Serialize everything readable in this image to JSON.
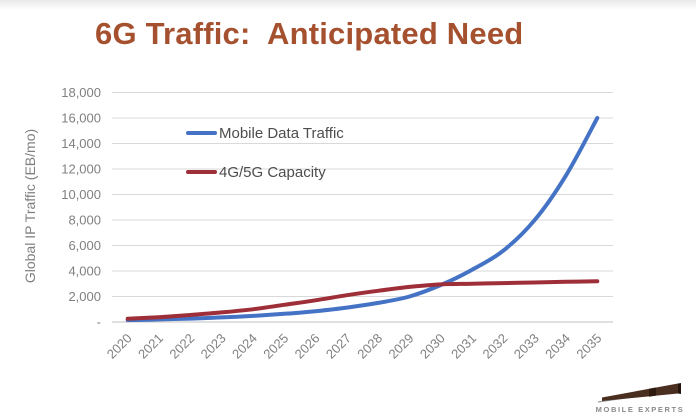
{
  "page": {
    "title": "6G Traffic:  Anticipated Need"
  },
  "colors": {
    "title": "#A5502E",
    "series_mobile": "#4472C4",
    "series_capacity": "#9E2F38",
    "gridline": "#D9D9D9",
    "axis_line": "#C0C0C0",
    "axis_text": "#808080",
    "legend_text": "#4d4d4d"
  },
  "chart_data": {
    "type": "line",
    "title": "6G Traffic:  Anticipated Need",
    "xlabel": "",
    "ylabel": "Global IP Traffic (EB/mo)",
    "categories": [
      "2020",
      "2021",
      "2022",
      "2023",
      "2024",
      "2025",
      "2026",
      "2027",
      "2028",
      "2029",
      "2030",
      "2031",
      "2032",
      "2033",
      "2034",
      "2035"
    ],
    "series": [
      {
        "name": "Mobile Data Traffic",
        "color": "#4472C4",
        "values": [
          150,
          200,
          270,
          360,
          480,
          640,
          850,
          1130,
          1500,
          2000,
          2900,
          4100,
          5600,
          8000,
          11500,
          16000
        ]
      },
      {
        "name": "4G/5G Capacity",
        "color": "#9E2F38",
        "values": [
          250,
          380,
          550,
          750,
          1000,
          1350,
          1700,
          2100,
          2450,
          2750,
          2950,
          3000,
          3050,
          3100,
          3150,
          3200
        ]
      }
    ],
    "ylim": [
      0,
      18000
    ],
    "ytick_step": 2000,
    "ytick_zero_label": "-",
    "grid": "horizontal",
    "legend_position": "inside-top-left",
    "x_tick_rotation_deg": -45
  },
  "logo": {
    "text": "Mobile Experts"
  }
}
